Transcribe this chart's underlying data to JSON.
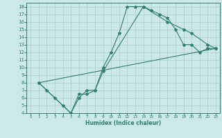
{
  "xlabel": "Humidex (Indice chaleur)",
  "bg_color": "#cce8e8",
  "line_color": "#2e7d6e",
  "grid_color": "#aacccc",
  "xlim": [
    -0.5,
    23.5
  ],
  "ylim": [
    4,
    18.5
  ],
  "xticks": [
    0,
    1,
    2,
    3,
    4,
    5,
    6,
    7,
    8,
    9,
    10,
    11,
    12,
    13,
    14,
    15,
    16,
    17,
    18,
    19,
    20,
    21,
    22,
    23
  ],
  "yticks": [
    4,
    5,
    6,
    7,
    8,
    9,
    10,
    11,
    12,
    13,
    14,
    15,
    16,
    17,
    18
  ],
  "line1_x": [
    1,
    2,
    3,
    4,
    5,
    6,
    7,
    8,
    9,
    10,
    11,
    12,
    13,
    14,
    15,
    16,
    17,
    18,
    19,
    20,
    21,
    22,
    23
  ],
  "line1_y": [
    8,
    7,
    6,
    5,
    4,
    6,
    7,
    7,
    10,
    12,
    14.5,
    18,
    18,
    18,
    17.5,
    17,
    16.5,
    15,
    13,
    13,
    12,
    12.5,
    12.5
  ],
  "line2_x": [
    1,
    5,
    6,
    7,
    8,
    9,
    14,
    17,
    19,
    20,
    22,
    23
  ],
  "line2_y": [
    8,
    4,
    6.5,
    6.5,
    7,
    9.5,
    18,
    16,
    15,
    14.5,
    13,
    12.5
  ],
  "line3_x": [
    1,
    23
  ],
  "line3_y": [
    8,
    12.5
  ]
}
